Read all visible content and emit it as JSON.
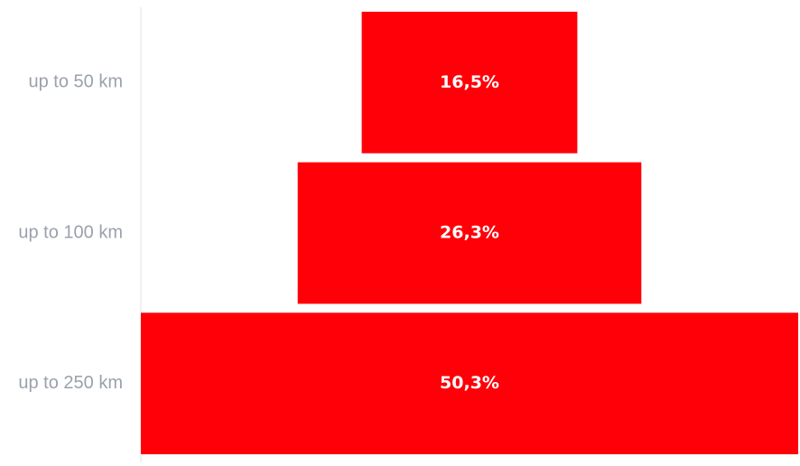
{
  "chart_data": {
    "type": "bar",
    "orientation": "horizontal-centered",
    "categories": [
      "up to 50 km",
      "up to 100 km",
      "up to 250 km"
    ],
    "values": [
      16.5,
      26.3,
      50.3
    ],
    "value_labels": [
      "16,5%",
      "26,3%",
      "50,3%"
    ],
    "bar_color": "#ff0009",
    "label_color": "#9aa1ab",
    "value_label_color": "#ffffff",
    "xlim": [
      0,
      50.3
    ],
    "grid": false,
    "legend": "none",
    "title": "",
    "xlabel": "",
    "ylabel": ""
  }
}
